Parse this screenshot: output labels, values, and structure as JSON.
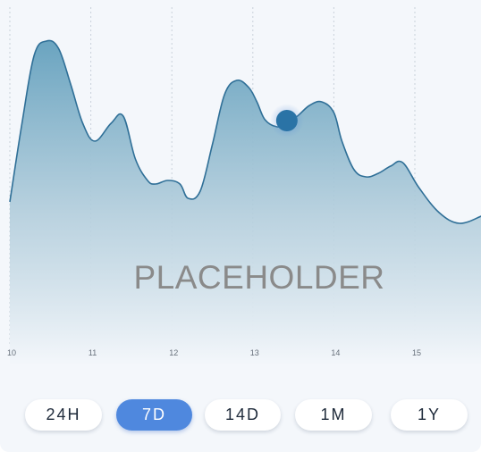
{
  "chart_data": {
    "type": "area",
    "title": "",
    "xlabel": "",
    "ylabel": "",
    "x_ticks": [
      "10",
      "11",
      "12",
      "13",
      "14",
      "15"
    ],
    "xlim": [
      10,
      15.82
    ],
    "ylim": [
      0,
      100
    ],
    "grid": "vertical dashed",
    "series": [
      {
        "x": [
          10,
          10.15,
          10.3,
          10.45,
          10.6,
          10.75,
          10.9,
          11.05,
          11.25,
          11.4,
          11.55,
          11.7,
          11.8,
          11.95,
          12.1,
          12.2,
          12.35,
          12.5,
          12.65,
          12.8,
          12.95,
          13.05,
          13.15,
          13.3,
          13.42,
          13.55,
          13.7,
          13.85,
          14.0,
          14.1,
          14.25,
          14.4,
          14.55,
          14.7,
          14.85,
          15.05,
          15.3,
          15.55,
          15.82
        ],
        "values": [
          46,
          68,
          87,
          91,
          89,
          79,
          68,
          63,
          68,
          70,
          58,
          52,
          51,
          52,
          51,
          47,
          49,
          62,
          76,
          80,
          78,
          74,
          69,
          67,
          68,
          70,
          73,
          74,
          71,
          63,
          55,
          53,
          54,
          56,
          57,
          50,
          43,
          40,
          42
        ]
      }
    ],
    "highlight_point": {
      "x": 13.42,
      "y": 68
    },
    "colors": {
      "line": "#2f6f97",
      "fill_top": "#6aa4c0",
      "fill_bottom": "#f4f7fb",
      "marker": "#2a73a6"
    }
  },
  "overlay": {
    "placeholder": "PLACEHOLDER"
  },
  "range_buttons": [
    {
      "label": "24H",
      "active": false
    },
    {
      "label": "7D",
      "active": true
    },
    {
      "label": "14D",
      "active": false
    },
    {
      "label": "1M",
      "active": false
    },
    {
      "label": "1Y",
      "active": false
    }
  ]
}
